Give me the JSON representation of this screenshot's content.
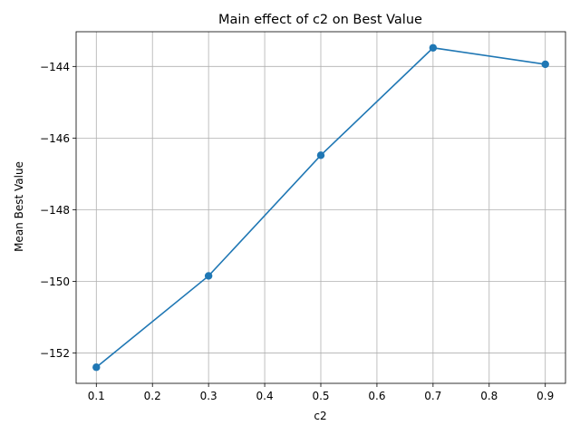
{
  "chart_data": {
    "type": "line",
    "title": "Main effect of c2 on Best Value",
    "xlabel": "c2",
    "ylabel": "Mean Best Value",
    "x": [
      0.1,
      0.3,
      0.5,
      0.7,
      0.9
    ],
    "series": [
      {
        "values": [
          -152.4,
          -149.85,
          -146.48,
          -143.48,
          -143.94
        ],
        "color": "#1f77b4"
      }
    ],
    "xlim": [
      0.064,
      0.936
    ],
    "ylim": [
      -152.85,
      -143.03
    ],
    "xticks": [
      0.1,
      0.2,
      0.3,
      0.4,
      0.5,
      0.6,
      0.7,
      0.8,
      0.9
    ],
    "xtick_labels": [
      "0.1",
      "0.2",
      "0.3",
      "0.4",
      "0.5",
      "0.6",
      "0.7",
      "0.8",
      "0.9"
    ],
    "yticks": [
      -152,
      -150,
      -148,
      -146,
      -144
    ],
    "ytick_labels": [
      "−152",
      "−150",
      "−148",
      "−146",
      "−144"
    ],
    "grid": true,
    "marker": "circle"
  }
}
